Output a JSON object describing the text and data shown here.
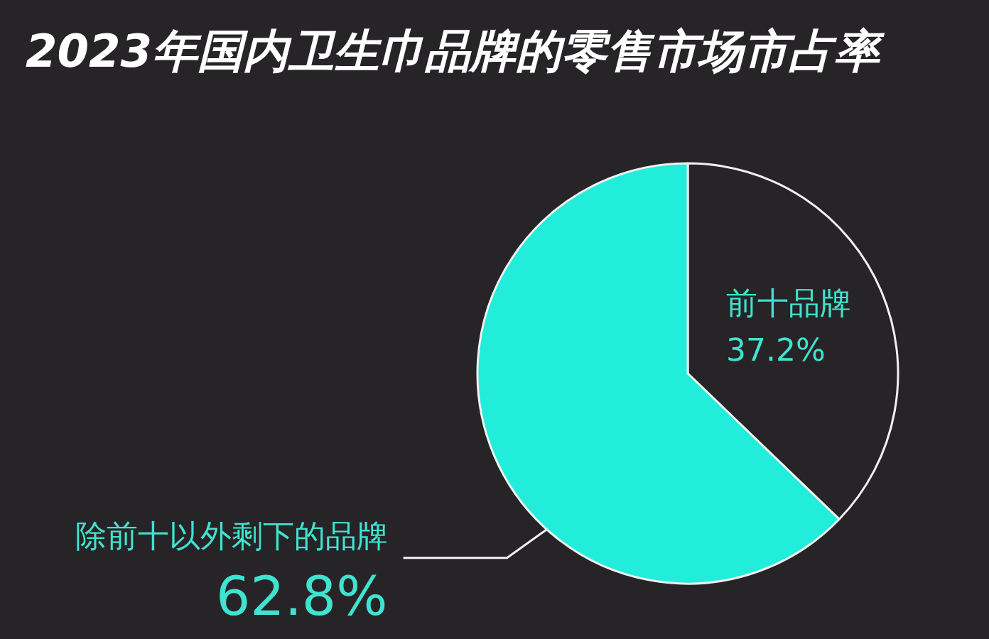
{
  "chart_data": {
    "type": "pie",
    "title": "2023年国内卫生巾品牌的零售市场市占率",
    "categories": [
      "前十品牌",
      "除前十以外剩下的品牌"
    ],
    "values": [
      37.2,
      62.8
    ],
    "colors": [
      "#262427",
      "#22ecda"
    ],
    "value_labels": [
      "37.2%",
      "62.8%"
    ]
  }
}
